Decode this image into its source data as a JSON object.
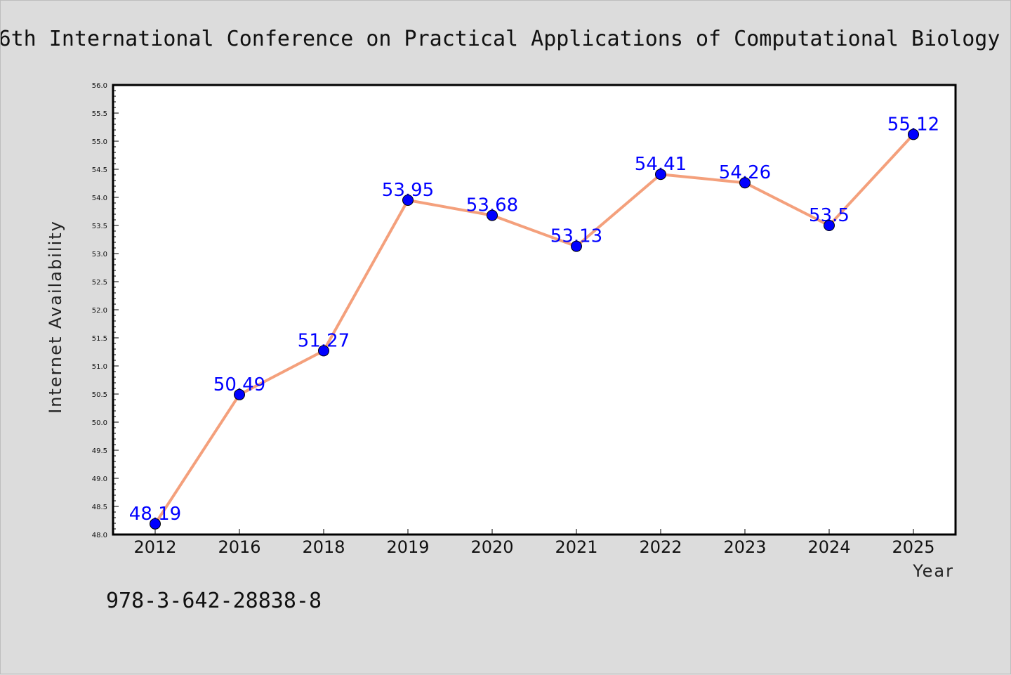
{
  "page": {
    "title": "6th International Conference on Practical Applications of Computational Biology",
    "footer_text": "978-3-642-28838-8"
  },
  "chart_data": {
    "type": "line",
    "title": "6th International Conference on Practical Applications of Computational Biology",
    "xlabel": "Year",
    "ylabel": "Internet Availability",
    "categories": [
      "2012",
      "2016",
      "2018",
      "2019",
      "2020",
      "2021",
      "2022",
      "2023",
      "2024",
      "2025"
    ],
    "series": [
      {
        "values": [
          48.19,
          50.49,
          51.27,
          53.95,
          53.68,
          53.13,
          54.41,
          54.26,
          53.5,
          55.12
        ],
        "labels": [
          "48.19",
          "50.49",
          "51.27",
          "53.95",
          "53.68",
          "53.13",
          "54.41",
          "54.26",
          "53.5",
          "55.12"
        ],
        "line_color": "#f4a07c",
        "marker_color": "#0000ff"
      }
    ],
    "ylim": [
      48.0,
      56.0
    ],
    "yticks": [
      "48.0",
      "48.5",
      "49.0",
      "49.5",
      "50.0",
      "50.5",
      "51.0",
      "51.5",
      "52.0",
      "52.5",
      "53.0",
      "53.5",
      "54.0",
      "54.5",
      "55.0",
      "55.5",
      "56.0"
    ],
    "grid": false,
    "legend": "none",
    "colors": {
      "background": "#dcdcdc",
      "plot_background": "#ffffff",
      "label_color": "#0000ff"
    }
  }
}
